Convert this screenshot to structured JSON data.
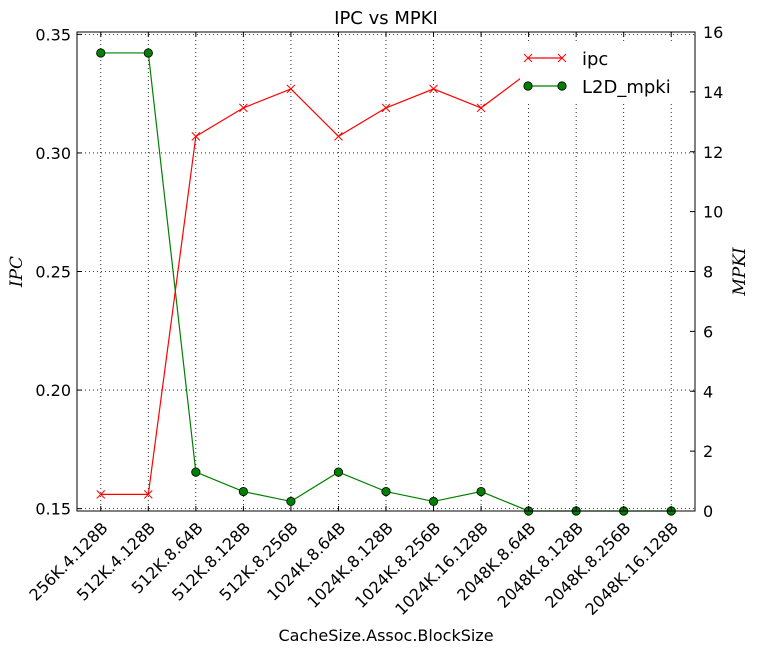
{
  "chart_data": {
    "type": "line",
    "title": "IPC vs MPKI",
    "xlabel": "CacheSize.Assoc.BlockSize",
    "ylabel_left": "IPC",
    "ylabel_right": "MPKI",
    "categories": [
      "256K.4.128B",
      "512K.4.128B",
      "512K.8.64B",
      "512K.8.128B",
      "512K.8.256B",
      "1024K.8.64B",
      "1024K.8.128B",
      "1024K.8.256B",
      "1024K.16.128B",
      "2048K.8.64B",
      "2048K.8.128B",
      "2048K.8.256B",
      "2048K.16.128B"
    ],
    "left_axis": {
      "ylim": [
        0.149,
        0.351
      ],
      "ticks": [
        0.15,
        0.2,
        0.25,
        0.3,
        0.35
      ],
      "tick_labels": [
        "0.15",
        "0.20",
        "0.25",
        "0.30",
        "0.35"
      ]
    },
    "right_axis": {
      "ylim": [
        0,
        16
      ],
      "ticks": [
        0,
        2,
        4,
        6,
        8,
        10,
        12,
        14,
        16
      ],
      "tick_labels": [
        "0",
        "2",
        "4",
        "6",
        "8",
        "10",
        "12",
        "14",
        "16"
      ]
    },
    "grid": true,
    "legend_position": "top-right",
    "series": [
      {
        "name": "ipc",
        "axis": "left",
        "color": "#ff0000",
        "marker": "x",
        "values": [
          0.156,
          0.156,
          0.307,
          0.319,
          0.327,
          0.307,
          0.319,
          0.327,
          0.319,
          0.334,
          0.334,
          0.334,
          0.334
        ]
      },
      {
        "name": "L2D_mpki",
        "axis": "right",
        "color": "#008000",
        "marker": "o",
        "values": [
          15.3,
          15.3,
          1.3,
          0.65,
          0.32,
          1.3,
          0.65,
          0.32,
          0.65,
          0.0,
          0.0,
          0.0,
          0.0
        ]
      }
    ]
  }
}
